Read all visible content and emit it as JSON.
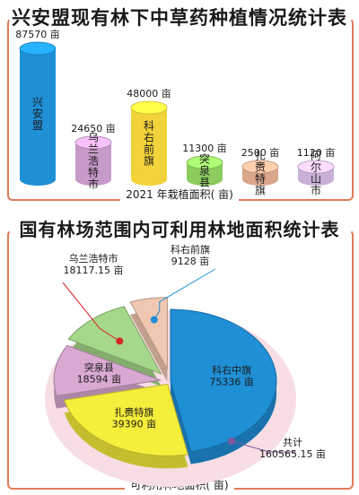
{
  "chart_data": [
    {
      "type": "bar",
      "title": "兴安盟现有林下中草药种植情况统计表",
      "xlabel": "2021 年栽植面积( 亩)",
      "unit": "亩",
      "categories": [
        "兴安盟",
        "乌兰浩特市",
        "科右前旗",
        "突泉县",
        "扎赉特旗",
        "阿尔山市"
      ],
      "values": [
        87570,
        24650,
        48000,
        11300,
        2500,
        1120
      ],
      "value_labels": [
        "87570 亩",
        "24650 亩",
        "48000 亩",
        "11300 亩",
        "2500 亩",
        "1120 亩"
      ],
      "colors": [
        "#1f8fd6",
        "#c79ac9",
        "#f2d33b",
        "#8ccb5e",
        "#d9a68a",
        "#c9b0d6"
      ],
      "ylim": [
        0,
        90000
      ]
    },
    {
      "type": "pie",
      "title": "国有林场范围内可利用林地面积统计表",
      "xlabel": "可利用林地面积( 亩)",
      "labels": [
        "科右中旗",
        "扎赉特旗",
        "突泉县",
        "乌兰浩特市",
        "科右前旗"
      ],
      "value_labels": [
        "75336 亩",
        "39390 亩",
        "18594 亩",
        "18117.15 亩",
        "9128 亩"
      ],
      "values": [
        75336,
        39390,
        18594,
        18117.15,
        9128
      ],
      "colors": [
        "#1f8fd6",
        "#f5ee3a",
        "#d9a9d2",
        "#a5d88a",
        "#f0c7b0"
      ],
      "total_label": "共计",
      "total_value": "160565.15 亩"
    }
  ]
}
